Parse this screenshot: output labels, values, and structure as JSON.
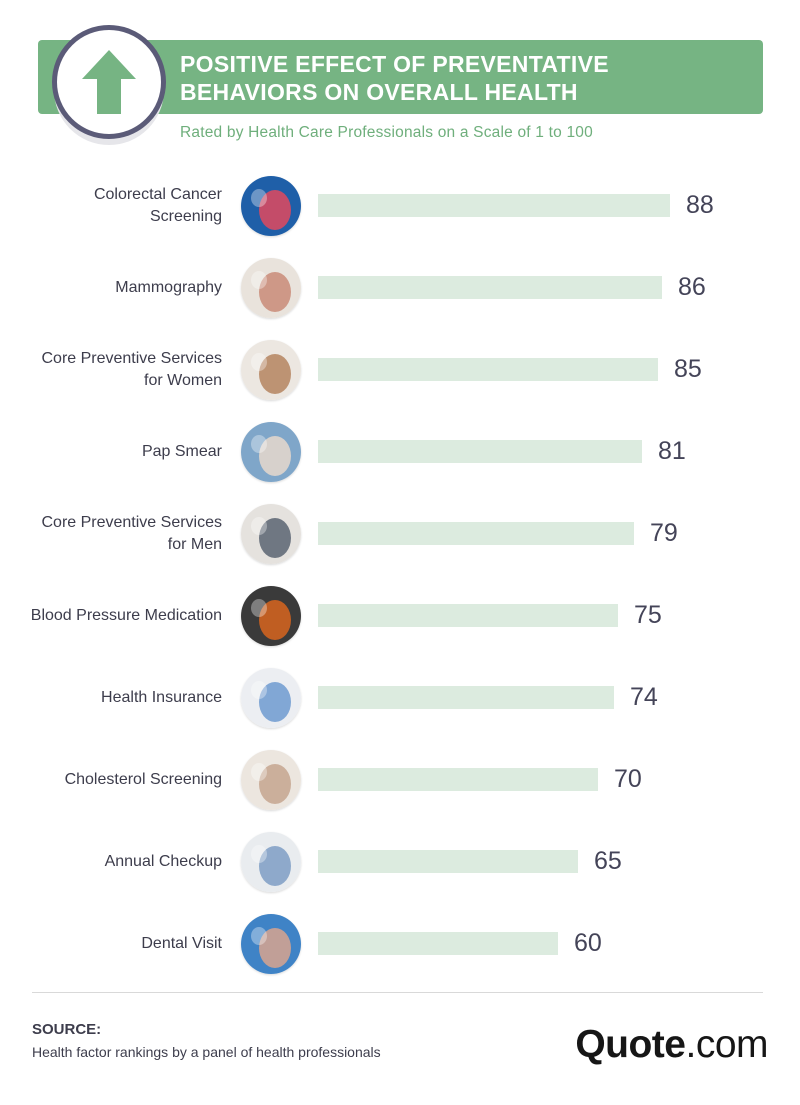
{
  "header": {
    "title": "POSITIVE EFFECT OF PREVENTATIVE BEHAVIORS ON OVERALL HEALTH",
    "subtitle": "Rated by Health Care Professionals on a Scale of 1 to 100",
    "icon": "up-arrow-icon"
  },
  "colors": {
    "banner": "#76b483",
    "subtitle": "#6faf7c",
    "bar": "#dcebdf",
    "badge_border": "#5b5b78"
  },
  "chart_data": {
    "type": "bar",
    "orientation": "horizontal",
    "categories": [
      "Colorectal Cancer Screening",
      "Mammography",
      "Core Preventive Services for Women",
      "Pap Smear",
      "Core Preventive Services for Men",
      "Blood Pressure Medication",
      "Health Insurance",
      "Cholesterol Screening",
      "Annual Checkup",
      "Dental Visit"
    ],
    "values": [
      88,
      86,
      85,
      81,
      79,
      75,
      74,
      70,
      65,
      60
    ],
    "xlim": [
      0,
      100
    ],
    "grid": false,
    "data_labels": true
  },
  "rows": [
    {
      "label": "Colorectal Cancer\nScreening",
      "value": "88",
      "icon": "colon-anatomy-photo"
    },
    {
      "label": "Mammography",
      "value": "86",
      "icon": "mammography-photo"
    },
    {
      "label": "Core Preventive Services\nfor Women",
      "value": "85",
      "icon": "women-consultation-photo"
    },
    {
      "label": "Pap Smear",
      "value": "81",
      "icon": "pap-smear-photo"
    },
    {
      "label": "Core Preventive Services\nfor Men",
      "value": "79",
      "icon": "men-consultation-photo"
    },
    {
      "label": "Blood Pressure Medication",
      "value": "75",
      "icon": "pill-bottle-photo"
    },
    {
      "label": "Health Insurance",
      "value": "74",
      "icon": "insurance-form-photo"
    },
    {
      "label": "Cholesterol Screening",
      "value": "70",
      "icon": "blood-test-photo"
    },
    {
      "label": "Annual Checkup",
      "value": "65",
      "icon": "doctor-checkup-photo"
    },
    {
      "label": "Dental Visit",
      "value": "60",
      "icon": "dental-tool-photo"
    }
  ],
  "footer": {
    "source_label": "SOURCE:",
    "source_text": "Health factor rankings by a panel of health professionals",
    "logo_bold": "Quote",
    "logo_light": ".com"
  }
}
